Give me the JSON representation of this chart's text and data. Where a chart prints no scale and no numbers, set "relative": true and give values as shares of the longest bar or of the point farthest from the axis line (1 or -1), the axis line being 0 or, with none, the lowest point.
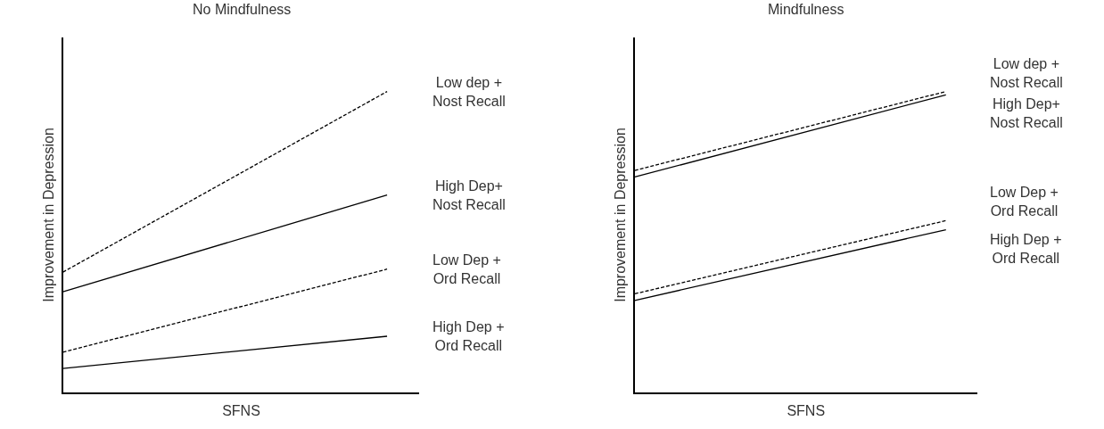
{
  "chart_data": [
    {
      "type": "line",
      "title": "No Mindfulness",
      "xlabel": "SFNS",
      "ylabel": "Improvement in Depression",
      "relative": true,
      "categories": [
        null,
        null
      ],
      "legend": false,
      "marker": "none",
      "series": [
        {
          "name": "Low dep +\nNost Recall",
          "color": "#000000",
          "line_style": "dashed",
          "values": [
            0.4,
            1.0
          ]
        },
        {
          "name": "High Dep+\nNost Recall",
          "color": "#000000",
          "line_style": "solid",
          "values": [
            0.335,
            0.656
          ]
        },
        {
          "name": "Low Dep +\nOrd Recall",
          "color": "#000000",
          "line_style": "dashed",
          "values": [
            0.134,
            0.41
          ]
        },
        {
          "name": "High Dep +\nOrd Recall",
          "color": "#000000",
          "line_style": "solid",
          "values": [
            0.08,
            0.187
          ]
        }
      ]
    },
    {
      "type": "line",
      "title": "Mindfulness",
      "xlabel": "SFNS",
      "ylabel": "Improvement in Depression",
      "relative": true,
      "categories": [
        null,
        null
      ],
      "legend": false,
      "marker": "none",
      "series": [
        {
          "name": "Low dep +\nNost Recall",
          "color": "#000000",
          "line_style": "dashed",
          "values": [
            0.738,
            1.0
          ]
        },
        {
          "name": "High Dep+\nNost Recall",
          "color": "#000000",
          "line_style": "solid",
          "values": [
            0.716,
            0.989
          ]
        },
        {
          "name": "Low Dep +\nOrd Recall",
          "color": "#000000",
          "line_style": "dashed",
          "values": [
            0.328,
            0.571
          ]
        },
        {
          "name": "High Dep +\nOrd Recall",
          "color": "#000000",
          "line_style": "solid",
          "values": [
            0.306,
            0.541
          ]
        }
      ]
    }
  ]
}
